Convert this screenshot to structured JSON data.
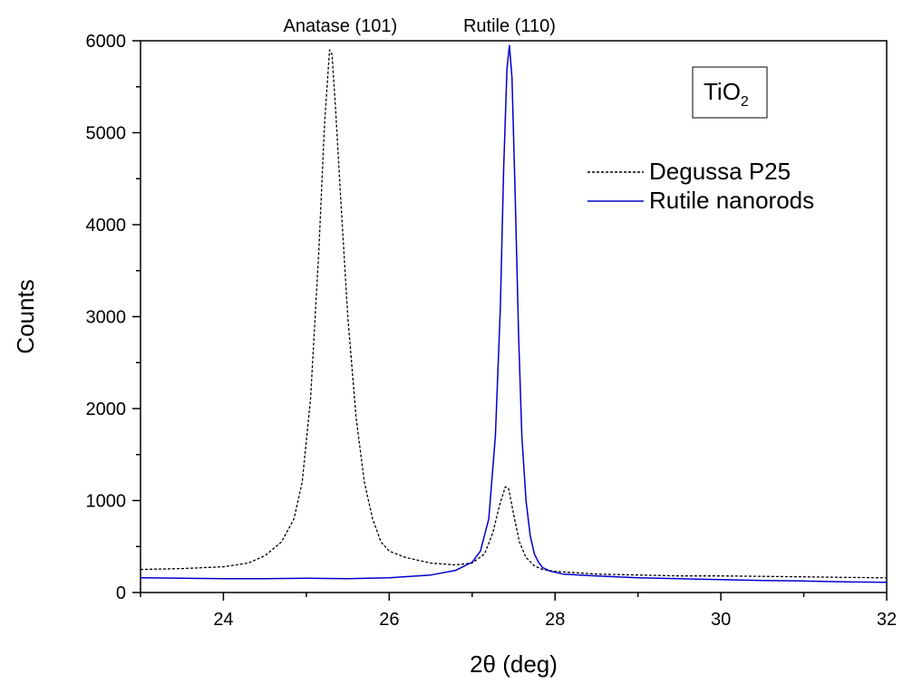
{
  "chart_data": {
    "type": "line",
    "title": "",
    "xlabel": "2θ (deg)",
    "ylabel": "Counts",
    "xlim": [
      23,
      32
    ],
    "ylim": [
      0,
      6000
    ],
    "x_ticks": [
      24,
      26,
      28,
      30,
      32
    ],
    "x_tick_labels": [
      "24",
      "26",
      "28",
      "30",
      "32"
    ],
    "y_ticks": [
      0,
      1000,
      2000,
      3000,
      4000,
      5000,
      6000
    ],
    "y_tick_labels": [
      "0",
      "1000",
      "2000",
      "3000",
      "4000",
      "5000",
      "6000"
    ],
    "grid": false,
    "legend_position": "top-right",
    "label_box": {
      "base": "TiO",
      "subscript": "2"
    },
    "annotations": [
      {
        "text": "Anatase (101)",
        "x": 25.3,
        "y": 6000
      },
      {
        "text": "Rutile (110)",
        "x": 27.45,
        "y": 6000
      }
    ],
    "series": [
      {
        "name": "Degussa P25",
        "color": "#000000",
        "style": "dashed",
        "x": [
          23.0,
          23.5,
          24.0,
          24.3,
          24.5,
          24.7,
          24.85,
          24.95,
          25.05,
          25.15,
          25.22,
          25.28,
          25.31,
          25.35,
          25.42,
          25.5,
          25.6,
          25.7,
          25.8,
          25.9,
          26.0,
          26.2,
          26.5,
          26.8,
          27.0,
          27.15,
          27.25,
          27.33,
          27.4,
          27.44,
          27.5,
          27.57,
          27.65,
          27.75,
          27.85,
          28.0,
          28.5,
          29.0,
          29.5,
          30.0,
          30.5,
          31.0,
          31.5,
          32.0
        ],
        "y": [
          250,
          260,
          280,
          320,
          400,
          550,
          800,
          1200,
          2100,
          3700,
          5100,
          5900,
          5850,
          5300,
          4200,
          3000,
          1900,
          1200,
          800,
          550,
          450,
          380,
          320,
          300,
          320,
          420,
          650,
          950,
          1150,
          1130,
          850,
          550,
          380,
          290,
          250,
          230,
          200,
          190,
          180,
          180,
          175,
          170,
          165,
          160
        ]
      },
      {
        "name": "Rutile nanorods",
        "color": "#0000cc",
        "style": "solid",
        "x": [
          23.0,
          23.5,
          24.0,
          24.5,
          25.0,
          25.5,
          26.0,
          26.5,
          26.8,
          27.0,
          27.1,
          27.2,
          27.28,
          27.34,
          27.38,
          27.42,
          27.45,
          27.48,
          27.52,
          27.56,
          27.6,
          27.65,
          27.7,
          27.75,
          27.8,
          27.85,
          27.95,
          28.1,
          28.5,
          29.0,
          29.5,
          30.0,
          30.5,
          31.0,
          31.5,
          32.0
        ],
        "y": [
          160,
          155,
          150,
          150,
          155,
          150,
          160,
          190,
          240,
          330,
          450,
          800,
          1700,
          3100,
          4600,
          5700,
          5950,
          5600,
          4300,
          2800,
          1700,
          1000,
          620,
          420,
          330,
          270,
          230,
          200,
          180,
          160,
          150,
          140,
          130,
          125,
          115,
          110
        ]
      }
    ]
  }
}
